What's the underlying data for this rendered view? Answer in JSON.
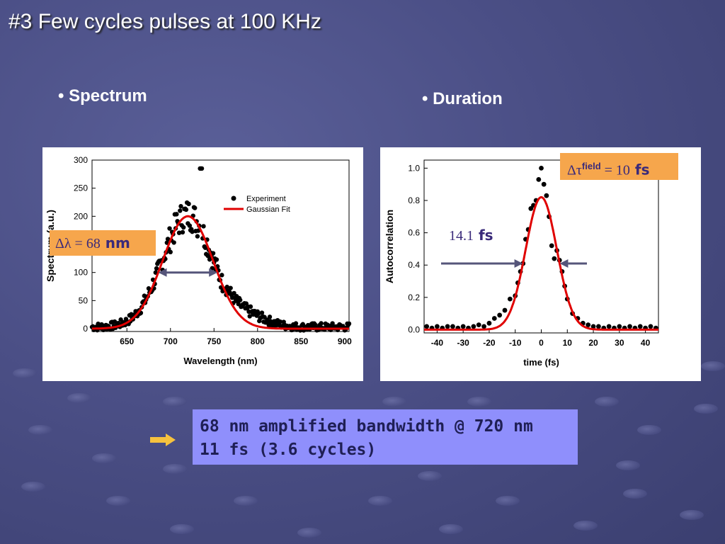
{
  "slide": {
    "title": "#3 Few cycles pulses at 100 KHz",
    "bullet_spectrum": "• Spectrum",
    "bullet_duration": "• Duration",
    "summary_line1": "68 nm amplified bandwidth @ 720 nm",
    "summary_line2": "11 fs (3.6 cycles)",
    "colors": {
      "box_orange": "#f6a64c",
      "summary_bg": "#8f8ffc",
      "fit_red": "#e00000",
      "arrow_blue": "#55557a"
    }
  },
  "spectrum_box": {
    "delta": "Δλ = 68",
    "unit": " nm"
  },
  "duration_box": {
    "delta": "Δτ",
    "sup": "field",
    "eq": " = 10",
    "unit": " fs"
  },
  "duration_label": {
    "value": "14.1",
    "unit": " fs"
  },
  "chart_data": [
    {
      "type": "scatter",
      "xlabel": "Wavelength (nm)",
      "ylabel": "Spectrum (a.u.)",
      "xlim": [
        610,
        905
      ],
      "ylim": [
        -5,
        300
      ],
      "xticks": [
        650,
        700,
        750,
        800,
        850,
        900
      ],
      "yticks": [
        0,
        50,
        100,
        150,
        200,
        250,
        300
      ],
      "legend_position": "top-right",
      "series": [
        {
          "name": "Experiment",
          "kind": "points",
          "x_range": [
            610,
            905
          ],
          "peak": 285,
          "center": 720,
          "fwhm": 68
        },
        {
          "name": "Gaussian Fit",
          "kind": "line",
          "amplitude": 200,
          "center": 720,
          "fwhm": 68
        }
      ]
    },
    {
      "type": "scatter",
      "xlabel": "time (fs)",
      "ylabel": "Autocorrelation",
      "xlim": [
        -45,
        45
      ],
      "ylim": [
        -0.02,
        1.05
      ],
      "xticks": [
        -40,
        -30,
        -20,
        -10,
        0,
        10,
        20,
        30,
        40
      ],
      "yticks": [
        0.0,
        0.2,
        0.4,
        0.6,
        0.8,
        1.0
      ],
      "series": [
        {
          "kind": "points",
          "x": [
            -44,
            -42,
            -40,
            -38,
            -36,
            -34,
            -32,
            -30,
            -28,
            -26,
            -24,
            -22,
            -20,
            -18,
            -16,
            -14,
            -12,
            -10,
            -9,
            -8,
            -7,
            -6,
            -5,
            -4,
            -3,
            -2,
            -1,
            0,
            1,
            2,
            3,
            4,
            5,
            6,
            7,
            8,
            9,
            10,
            12,
            14,
            16,
            18,
            20,
            22,
            24,
            26,
            28,
            30,
            32,
            34,
            36,
            38,
            40,
            42,
            44
          ],
          "y": [
            0.02,
            0.01,
            0.02,
            0.01,
            0.02,
            0.02,
            0.01,
            0.02,
            0.01,
            0.02,
            0.03,
            0.02,
            0.04,
            0.07,
            0.09,
            0.12,
            0.19,
            0.21,
            0.29,
            0.36,
            0.41,
            0.56,
            0.62,
            0.75,
            0.77,
            0.8,
            0.93,
            1.0,
            0.9,
            0.83,
            0.7,
            0.52,
            0.44,
            0.49,
            0.43,
            0.36,
            0.27,
            0.19,
            0.1,
            0.07,
            0.04,
            0.03,
            0.02,
            0.02,
            0.01,
            0.02,
            0.01,
            0.02,
            0.01,
            0.02,
            0.01,
            0.02,
            0.01,
            0.02,
            0.01
          ]
        },
        {
          "kind": "line",
          "amplitude": 0.82,
          "center": 0,
          "fwhm": 14.1
        }
      ]
    }
  ]
}
